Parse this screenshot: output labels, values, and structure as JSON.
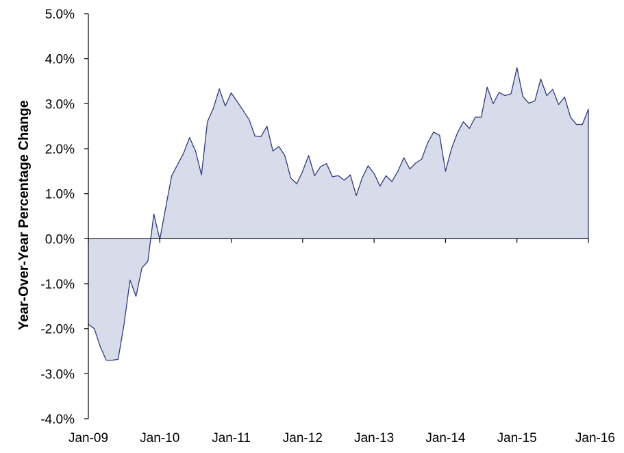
{
  "chart_data": {
    "type": "area",
    "title": "",
    "xlabel": "",
    "ylabel": "Year-Over-Year  Percentage Change",
    "ylim": [
      -4.0,
      5.0
    ],
    "y_ticks": [
      "5.0%",
      "4.0%",
      "3.0%",
      "2.0%",
      "1.0%",
      "0.0%",
      "-1.0%",
      "-2.0%",
      "-3.0%",
      "-4.0%"
    ],
    "x_ticks": [
      "Jan-09",
      "Jan-10",
      "Jan-11",
      "Jan-12",
      "Jan-13",
      "Jan-14",
      "Jan-15",
      "Jan-16"
    ],
    "x_start": "Jan-09",
    "x_end": "Jan-16",
    "grid": false,
    "legend": "none",
    "line_color": "#2b3a7a",
    "fill_color": "#d8dcea",
    "series": [
      {
        "values": [
          -1.9,
          -2.0,
          -2.4,
          -2.7,
          -2.7,
          -2.68,
          -1.9,
          -0.92,
          -1.28,
          -0.65,
          -0.5,
          0.55,
          -0.02,
          0.7,
          1.4,
          1.65,
          1.9,
          2.25,
          1.95,
          1.42,
          2.6,
          2.9,
          3.33,
          2.95,
          3.24,
          3.05,
          2.85,
          2.65,
          2.28,
          2.27,
          2.5,
          1.95,
          2.05,
          1.85,
          1.35,
          1.22,
          1.5,
          1.85,
          1.4,
          1.6,
          1.67,
          1.38,
          1.4,
          1.3,
          1.42,
          0.96,
          1.35,
          1.62,
          1.45,
          1.17,
          1.4,
          1.27,
          1.5,
          1.8,
          1.55,
          1.68,
          1.77,
          2.13,
          2.37,
          2.3,
          1.5,
          2.0,
          2.35,
          2.6,
          2.45,
          2.7,
          2.7,
          3.37,
          3.0,
          3.25,
          3.18,
          3.22,
          3.8,
          3.16,
          3.01,
          3.06,
          3.55,
          3.18,
          3.32,
          2.98,
          3.15,
          2.7,
          2.54,
          2.54,
          2.88
        ]
      }
    ]
  }
}
